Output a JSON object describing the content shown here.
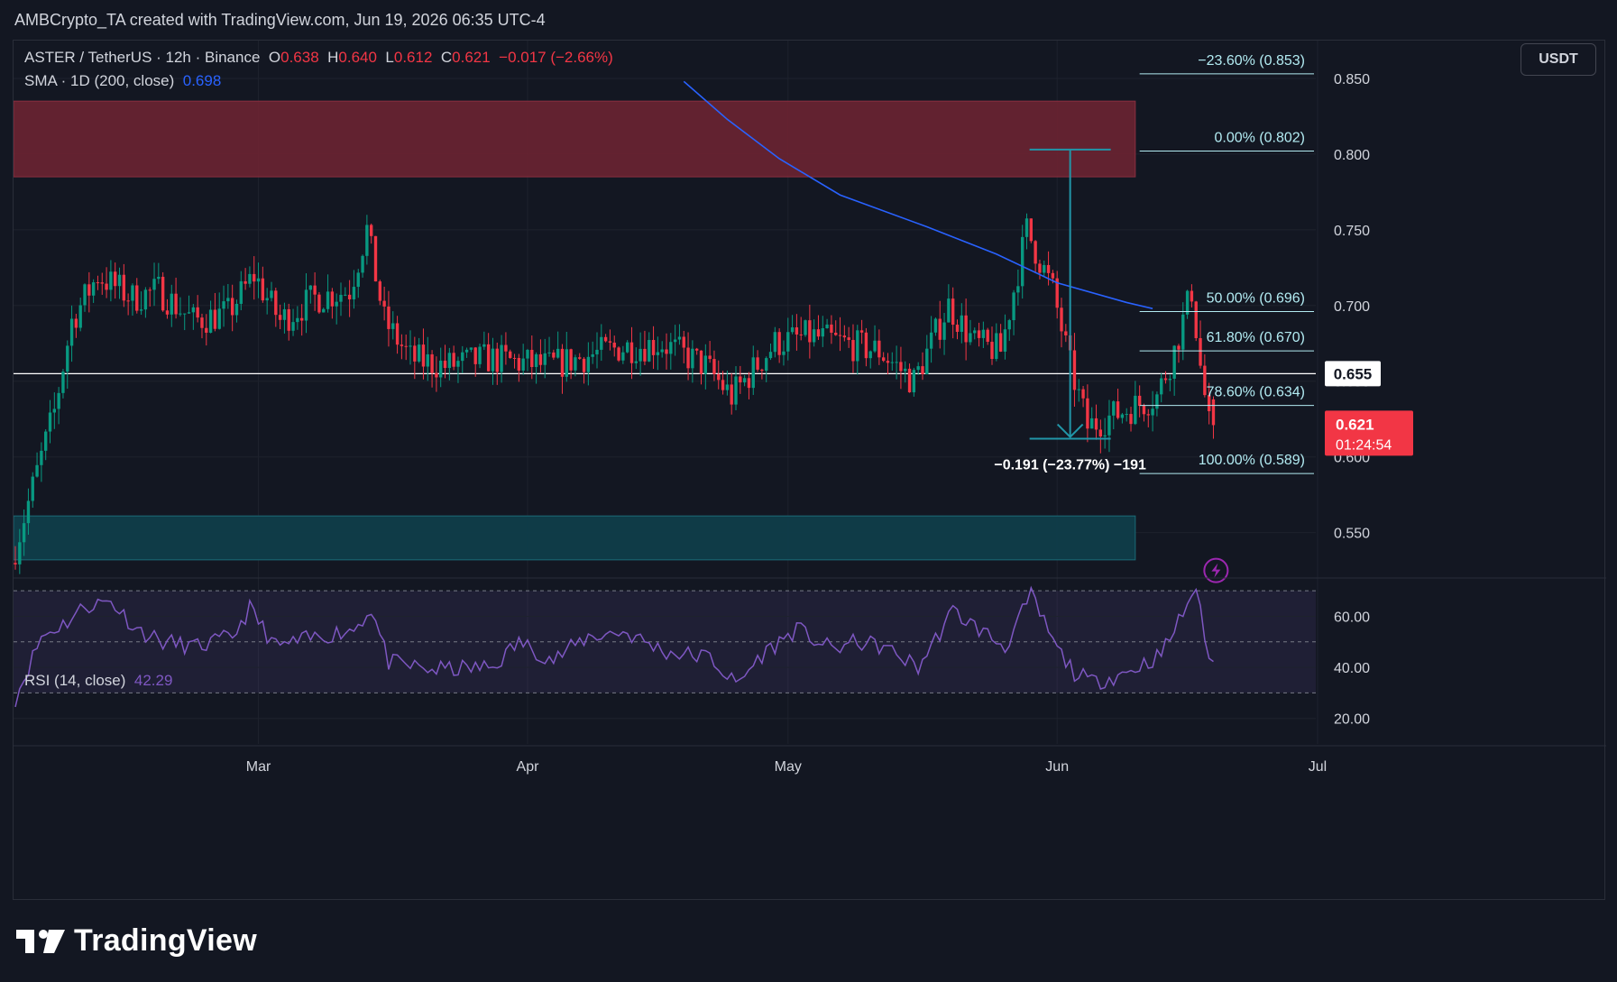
{
  "header": {
    "text": "AMBCrypto_TA created with TradingView.com, Jun 19, 2026 06:35 UTC-4"
  },
  "legend": {
    "symbol": "ASTER / TetherUS · 12h · Binance",
    "o_label": "O",
    "o": "0.638",
    "h_label": "H",
    "h": "0.640",
    "l_label": "L",
    "l": "0.612",
    "c_label": "C",
    "c": "0.621",
    "change": "−0.017 (−2.66%)",
    "sma_label": "SMA · 1D (200, close)",
    "sma_value": "0.698"
  },
  "rsi_legend": {
    "label": "RSI (14, close)",
    "value": "42.29"
  },
  "currency_button": "USDT",
  "footer": {
    "brand": "TradingView"
  },
  "colors": {
    "background": "#131722",
    "up": "#089981",
    "down": "#f23645",
    "sma": "#2962ff",
    "rsi": "#7e57c2",
    "resistance_zone": "#6b2332",
    "support_zone": "#0f3d4a",
    "fib": "#b2ebf2"
  },
  "chart_data": [
    {
      "type": "candlestick",
      "title": "",
      "x_ticks": [
        "Mar",
        "Apr",
        "May",
        "Jun",
        "Jul"
      ],
      "y_ticks": [
        "0.550",
        "0.600",
        "0.650",
        "0.700",
        "0.750",
        "0.800",
        "0.850"
      ],
      "ylim": [
        0.52,
        0.875
      ],
      "xrange_days": [
        0,
        150
      ],
      "candles_summary": {
        "start_price": 0.53,
        "range_low": 0.6,
        "range_high": 0.79,
        "last_open": 0.638,
        "last_high": 0.64,
        "last_low": 0.612,
        "last_close": 0.621
      },
      "anchors": [
        [
          0,
          0.53
        ],
        [
          3,
          0.59
        ],
        [
          5,
          0.63
        ],
        [
          7,
          0.69
        ],
        [
          10,
          0.72
        ],
        [
          14,
          0.705
        ],
        [
          17,
          0.71
        ],
        [
          21,
          0.69
        ],
        [
          25,
          0.695
        ],
        [
          28,
          0.72
        ],
        [
          31,
          0.69
        ],
        [
          35,
          0.705
        ],
        [
          39,
          0.71
        ],
        [
          41,
          0.75
        ],
        [
          43,
          0.69
        ],
        [
          46,
          0.665
        ],
        [
          50,
          0.66
        ],
        [
          55,
          0.665
        ],
        [
          62,
          0.66
        ],
        [
          70,
          0.672
        ],
        [
          75,
          0.675
        ],
        [
          80,
          0.66
        ],
        [
          83,
          0.64
        ],
        [
          88,
          0.675
        ],
        [
          92,
          0.68
        ],
        [
          96,
          0.675
        ],
        [
          100,
          0.67
        ],
        [
          104,
          0.65
        ],
        [
          108,
          0.7
        ],
        [
          111,
          0.675
        ],
        [
          114,
          0.67
        ],
        [
          117,
          0.75
        ],
        [
          120,
          0.71
        ],
        [
          122,
          0.66
        ],
        [
          124,
          0.62
        ],
        [
          128,
          0.63
        ],
        [
          132,
          0.64
        ],
        [
          134,
          0.67
        ],
        [
          136,
          0.71
        ],
        [
          137,
          0.66
        ],
        [
          138,
          0.621
        ]
      ],
      "sma": {
        "name": "SMA · 1D (200, close)",
        "points": [
          [
            77,
            0.848
          ],
          [
            82,
            0.823
          ],
          [
            88,
            0.797
          ],
          [
            95,
            0.773
          ],
          [
            105,
            0.752
          ],
          [
            113,
            0.734
          ],
          [
            120,
            0.715
          ],
          [
            128,
            0.702
          ],
          [
            131,
            0.698
          ]
        ]
      },
      "resistance_zone": {
        "low": 0.785,
        "high": 0.835
      },
      "support_zone": {
        "low": 0.532,
        "high": 0.561
      },
      "horizontal_line": {
        "value": 0.655,
        "label": "0.655"
      },
      "price_label": {
        "value": 0.621,
        "label": "0.621",
        "countdown": "01:24:54"
      },
      "fibonacci": [
        {
          "label": "−23.60% (0.853)",
          "value": 0.853
        },
        {
          "label": "0.00% (0.802)",
          "value": 0.802
        },
        {
          "label": "50.00% (0.696)",
          "value": 0.696
        },
        {
          "label": "61.80% (0.670)",
          "value": 0.67
        },
        {
          "label": "78.60% (0.634)",
          "value": 0.634
        },
        {
          "label": "100.00% (0.589)",
          "value": 0.589
        }
      ],
      "measure": {
        "label": "−0.191 (−23.77%) −191",
        "from_value": 0.803,
        "to_value": 0.612
      }
    },
    {
      "type": "line",
      "title": "",
      "series": [
        {
          "name": "RSI (14, close)",
          "last": 42.29
        }
      ],
      "y_ticks": [
        "20.00",
        "40.00",
        "60.00"
      ],
      "ylim": [
        10,
        75
      ],
      "bands": [
        30,
        50,
        70
      ],
      "anchors": [
        [
          0,
          28
        ],
        [
          3,
          52
        ],
        [
          6,
          58
        ],
        [
          8,
          64
        ],
        [
          11,
          66
        ],
        [
          14,
          55
        ],
        [
          17,
          50
        ],
        [
          21,
          48
        ],
        [
          25,
          52
        ],
        [
          27,
          63
        ],
        [
          30,
          48
        ],
        [
          35,
          52
        ],
        [
          39,
          55
        ],
        [
          41,
          63
        ],
        [
          43,
          42
        ],
        [
          48,
          39
        ],
        [
          55,
          40
        ],
        [
          58,
          50
        ],
        [
          62,
          43
        ],
        [
          66,
          52
        ],
        [
          70,
          54
        ],
        [
          75,
          46
        ],
        [
          80,
          44
        ],
        [
          83,
          33
        ],
        [
          86,
          45
        ],
        [
          90,
          55
        ],
        [
          94,
          47
        ],
        [
          97,
          50
        ],
        [
          100,
          48
        ],
        [
          104,
          40
        ],
        [
          108,
          62
        ],
        [
          111,
          55
        ],
        [
          114,
          48
        ],
        [
          117,
          68
        ],
        [
          120,
          47
        ],
        [
          122,
          38
        ],
        [
          124,
          34
        ],
        [
          128,
          38
        ],
        [
          132,
          45
        ],
        [
          134,
          58
        ],
        [
          136,
          72
        ],
        [
          137,
          50
        ],
        [
          138,
          42.29
        ]
      ]
    }
  ]
}
